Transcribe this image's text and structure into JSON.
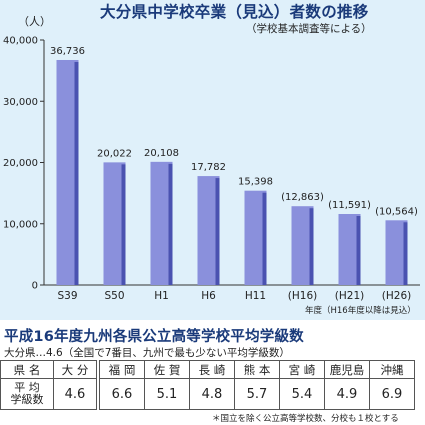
{
  "chart_data": {
    "type": "bar",
    "title": "大分県中学校卒業（見込）者数の推移",
    "subtitle": "（学校基本調査等による）",
    "ylabel": "（人）",
    "ylim": [
      0,
      40000
    ],
    "yticks": [
      "0",
      "10,000",
      "20,000",
      "30,000",
      "40,000"
    ],
    "categories": [
      "S39",
      "S50",
      "H1",
      "H6",
      "H11",
      "(H16)",
      "(H21)",
      "(H26)"
    ],
    "values": [
      36736,
      20022,
      20108,
      17782,
      15398,
      12863,
      11591,
      10564
    ],
    "value_labels": [
      "36,736",
      "20,022",
      "20,108",
      "17,782",
      "15,398",
      "(12,863)",
      "(11,591)",
      "(10,564)"
    ],
    "x_note": "年度（H16年度以降は見込）",
    "colors": {
      "bar": "#8a90dc",
      "bar_dark": "#4a52b0",
      "background": "#dff0fa",
      "title": "#1a3a7a"
    },
    "grid": false,
    "legend": "none"
  },
  "table": {
    "title": "平成16年度九州各県公立高等学校平均学級数",
    "subtitle": "大分県…4.6（全国で7番目、九州で最も少ない平均学級数）",
    "row_header": "県 名",
    "row_value_label": "平 均\n学級数",
    "own": {
      "name": "大 分",
      "value": "4.6"
    },
    "prefectures": [
      {
        "name": "福 岡",
        "value": "6.6"
      },
      {
        "name": "佐 賀",
        "value": "5.1"
      },
      {
        "name": "長 崎",
        "value": "4.8"
      },
      {
        "name": "熊 本",
        "value": "5.7"
      },
      {
        "name": "宮 崎",
        "value": "5.4"
      },
      {
        "name": "鹿児島",
        "value": "4.9"
      },
      {
        "name": "沖縄",
        "value": "6.9"
      }
    ],
    "footnote": "＊国立を除く公立高等学校数、分校も１校とする"
  }
}
